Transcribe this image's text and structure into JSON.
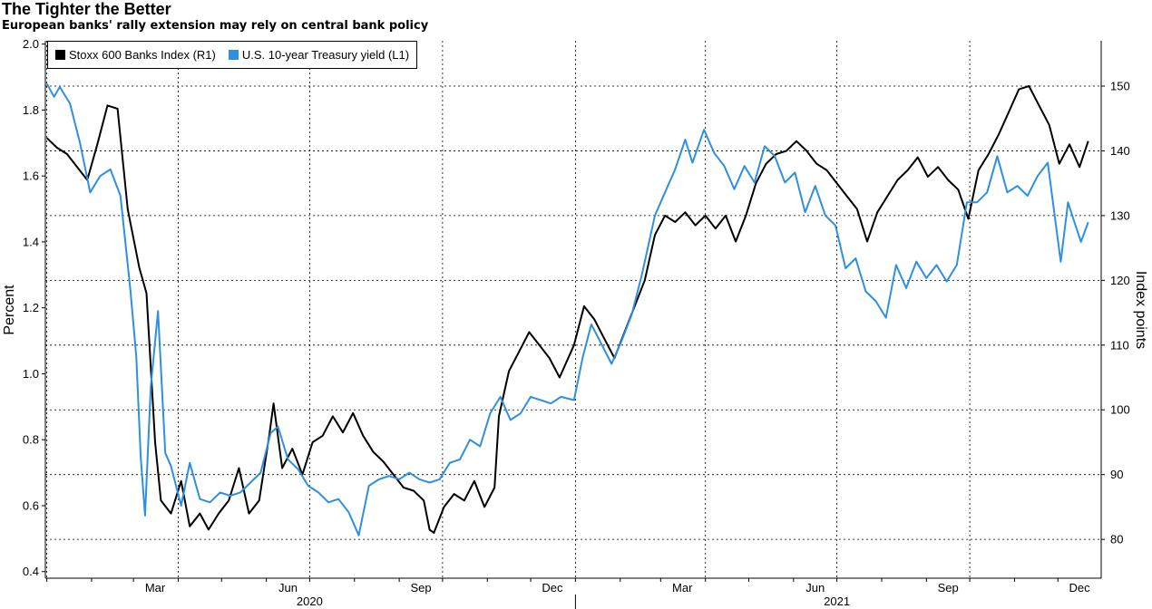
{
  "title": "The Tighter the Better",
  "subtitle": "European banks' rally extension may rely on central bank policy",
  "chart_data": {
    "type": "line",
    "left_axis": {
      "label": "Percent",
      "range": [
        0.38,
        2.01
      ],
      "ticks": [
        "0.4",
        "0.6",
        "0.8",
        "1.0",
        "1.2",
        "1.4",
        "1.6",
        "1.8",
        "2.0"
      ]
    },
    "right_axis": {
      "label": "Index points",
      "range": [
        74,
        157
      ],
      "ticks": [
        "80",
        "90",
        "100",
        "110",
        "120",
        "130",
        "140",
        "150"
      ]
    },
    "x_axis": {
      "months": [
        "Mar",
        "Jun",
        "Sep",
        "Dec",
        "Mar",
        "Jun",
        "Sep",
        "Dec"
      ],
      "years": [
        "2020",
        "2021"
      ]
    },
    "grid": true,
    "legend_position": "top-left",
    "series": [
      {
        "name": "Stoxx 600 Banks Index (R1)",
        "axis": "right",
        "color": "#000000",
        "points": [
          [
            "2020-01-01",
            142
          ],
          [
            "2020-01-08",
            140.5
          ],
          [
            "2020-01-15",
            139.5
          ],
          [
            "2020-01-22",
            137.5
          ],
          [
            "2020-01-29",
            135.5
          ],
          [
            "2020-02-05",
            141
          ],
          [
            "2020-02-12",
            147
          ],
          [
            "2020-02-19",
            146.5
          ],
          [
            "2020-02-26",
            131
          ],
          [
            "2020-03-05",
            122
          ],
          [
            "2020-03-10",
            118
          ],
          [
            "2020-03-16",
            95
          ],
          [
            "2020-03-20",
            86
          ],
          [
            "2020-03-27",
            84
          ],
          [
            "2020-04-03",
            89
          ],
          [
            "2020-04-09",
            82
          ],
          [
            "2020-04-16",
            84
          ],
          [
            "2020-04-22",
            81.5
          ],
          [
            "2020-04-29",
            84
          ],
          [
            "2020-05-06",
            86
          ],
          [
            "2020-05-13",
            91
          ],
          [
            "2020-05-20",
            84
          ],
          [
            "2020-05-27",
            86
          ],
          [
            "2020-06-03",
            96
          ],
          [
            "2020-06-06",
            101
          ],
          [
            "2020-06-12",
            91
          ],
          [
            "2020-06-19",
            94
          ],
          [
            "2020-06-26",
            90
          ],
          [
            "2020-07-03",
            95
          ],
          [
            "2020-07-10",
            96
          ],
          [
            "2020-07-17",
            99
          ],
          [
            "2020-07-24",
            96.5
          ],
          [
            "2020-07-31",
            99.5
          ],
          [
            "2020-08-07",
            96
          ],
          [
            "2020-08-14",
            93.5
          ],
          [
            "2020-08-21",
            92
          ],
          [
            "2020-08-28",
            90
          ],
          [
            "2020-09-04",
            88
          ],
          [
            "2020-09-11",
            87.5
          ],
          [
            "2020-09-18",
            86
          ],
          [
            "2020-09-22",
            81.5
          ],
          [
            "2020-09-25",
            81
          ],
          [
            "2020-10-02",
            85
          ],
          [
            "2020-10-09",
            87
          ],
          [
            "2020-10-16",
            86
          ],
          [
            "2020-10-23",
            89
          ],
          [
            "2020-10-30",
            85
          ],
          [
            "2020-11-06",
            88
          ],
          [
            "2020-11-09",
            99
          ],
          [
            "2020-11-16",
            106
          ],
          [
            "2020-11-23",
            109
          ],
          [
            "2020-11-30",
            112
          ],
          [
            "2020-12-07",
            110
          ],
          [
            "2020-12-14",
            108
          ],
          [
            "2020-12-21",
            105
          ],
          [
            "2020-12-31",
            110
          ],
          [
            "2021-01-07",
            116
          ],
          [
            "2021-01-14",
            114
          ],
          [
            "2021-01-21",
            111
          ],
          [
            "2021-01-28",
            108
          ],
          [
            "2021-02-04",
            112
          ],
          [
            "2021-02-11",
            116
          ],
          [
            "2021-02-18",
            120
          ],
          [
            "2021-02-25",
            127
          ],
          [
            "2021-03-04",
            130
          ],
          [
            "2021-03-11",
            129
          ],
          [
            "2021-03-18",
            130.5
          ],
          [
            "2021-03-25",
            128.5
          ],
          [
            "2021-04-01",
            130
          ],
          [
            "2021-04-08",
            128
          ],
          [
            "2021-04-15",
            130
          ],
          [
            "2021-04-22",
            126
          ],
          [
            "2021-04-29",
            130
          ],
          [
            "2021-05-06",
            135
          ],
          [
            "2021-05-13",
            138
          ],
          [
            "2021-05-20",
            139.5
          ],
          [
            "2021-05-27",
            140
          ],
          [
            "2021-06-03",
            141.5
          ],
          [
            "2021-06-10",
            140
          ],
          [
            "2021-06-17",
            138
          ],
          [
            "2021-06-24",
            137
          ],
          [
            "2021-07-01",
            135
          ],
          [
            "2021-07-08",
            133
          ],
          [
            "2021-07-15",
            131
          ],
          [
            "2021-07-22",
            126
          ],
          [
            "2021-07-29",
            130.5
          ],
          [
            "2021-08-05",
            133
          ],
          [
            "2021-08-12",
            135.5
          ],
          [
            "2021-08-19",
            137
          ],
          [
            "2021-08-26",
            139
          ],
          [
            "2021-09-02",
            136
          ],
          [
            "2021-09-09",
            137.5
          ],
          [
            "2021-09-16",
            135.5
          ],
          [
            "2021-09-23",
            134
          ],
          [
            "2021-09-30",
            129.5
          ],
          [
            "2021-10-07",
            137
          ],
          [
            "2021-10-14",
            139.5
          ],
          [
            "2021-10-21",
            142.5
          ],
          [
            "2021-10-28",
            146
          ],
          [
            "2021-11-04",
            149.5
          ],
          [
            "2021-11-11",
            150
          ],
          [
            "2021-11-18",
            147
          ],
          [
            "2021-11-25",
            144
          ],
          [
            "2021-12-02",
            138
          ],
          [
            "2021-12-09",
            141
          ],
          [
            "2021-12-16",
            137.5
          ],
          [
            "2021-12-22",
            141.5
          ]
        ]
      },
      {
        "name": "U.S. 10-year Treasury yield (L1)",
        "axis": "left",
        "color": "#2f8fe0",
        "points": [
          [
            "2020-01-01",
            1.88
          ],
          [
            "2020-01-06",
            1.84
          ],
          [
            "2020-01-10",
            1.87
          ],
          [
            "2020-01-17",
            1.82
          ],
          [
            "2020-01-24",
            1.7
          ],
          [
            "2020-01-31",
            1.55
          ],
          [
            "2020-02-07",
            1.6
          ],
          [
            "2020-02-14",
            1.62
          ],
          [
            "2020-02-21",
            1.54
          ],
          [
            "2020-02-28",
            1.25
          ],
          [
            "2020-03-03",
            1.05
          ],
          [
            "2020-03-06",
            0.75
          ],
          [
            "2020-03-09",
            0.57
          ],
          [
            "2020-03-13",
            0.96
          ],
          [
            "2020-03-18",
            1.19
          ],
          [
            "2020-03-23",
            0.76
          ],
          [
            "2020-03-27",
            0.72
          ],
          [
            "2020-04-03",
            0.6
          ],
          [
            "2020-04-09",
            0.73
          ],
          [
            "2020-04-16",
            0.62
          ],
          [
            "2020-04-23",
            0.61
          ],
          [
            "2020-04-30",
            0.64
          ],
          [
            "2020-05-07",
            0.63
          ],
          [
            "2020-05-14",
            0.64
          ],
          [
            "2020-05-21",
            0.67
          ],
          [
            "2020-05-28",
            0.7
          ],
          [
            "2020-06-04",
            0.82
          ],
          [
            "2020-06-09",
            0.84
          ],
          [
            "2020-06-16",
            0.74
          ],
          [
            "2020-06-23",
            0.71
          ],
          [
            "2020-06-30",
            0.66
          ],
          [
            "2020-07-07",
            0.64
          ],
          [
            "2020-07-14",
            0.61
          ],
          [
            "2020-07-21",
            0.62
          ],
          [
            "2020-07-28",
            0.58
          ],
          [
            "2020-08-04",
            0.51
          ],
          [
            "2020-08-11",
            0.66
          ],
          [
            "2020-08-18",
            0.68
          ],
          [
            "2020-08-25",
            0.69
          ],
          [
            "2020-09-01",
            0.68
          ],
          [
            "2020-09-08",
            0.7
          ],
          [
            "2020-09-15",
            0.68
          ],
          [
            "2020-09-22",
            0.67
          ],
          [
            "2020-09-29",
            0.68
          ],
          [
            "2020-10-06",
            0.73
          ],
          [
            "2020-10-13",
            0.74
          ],
          [
            "2020-10-20",
            0.8
          ],
          [
            "2020-10-27",
            0.78
          ],
          [
            "2020-11-03",
            0.88
          ],
          [
            "2020-11-10",
            0.93
          ],
          [
            "2020-11-17",
            0.86
          ],
          [
            "2020-11-24",
            0.88
          ],
          [
            "2020-12-01",
            0.93
          ],
          [
            "2020-12-08",
            0.92
          ],
          [
            "2020-12-15",
            0.91
          ],
          [
            "2020-12-22",
            0.93
          ],
          [
            "2020-12-31",
            0.92
          ],
          [
            "2021-01-06",
            1.05
          ],
          [
            "2021-01-12",
            1.15
          ],
          [
            "2021-01-19",
            1.09
          ],
          [
            "2021-01-26",
            1.03
          ],
          [
            "2021-02-02",
            1.1
          ],
          [
            "2021-02-09",
            1.18
          ],
          [
            "2021-02-16",
            1.3
          ],
          [
            "2021-02-25",
            1.48
          ],
          [
            "2021-03-04",
            1.55
          ],
          [
            "2021-03-11",
            1.62
          ],
          [
            "2021-03-18",
            1.71
          ],
          [
            "2021-03-23",
            1.64
          ],
          [
            "2021-03-31",
            1.74
          ],
          [
            "2021-04-07",
            1.67
          ],
          [
            "2021-04-14",
            1.63
          ],
          [
            "2021-04-21",
            1.56
          ],
          [
            "2021-04-28",
            1.63
          ],
          [
            "2021-05-05",
            1.58
          ],
          [
            "2021-05-12",
            1.69
          ],
          [
            "2021-05-19",
            1.66
          ],
          [
            "2021-05-26",
            1.58
          ],
          [
            "2021-06-02",
            1.61
          ],
          [
            "2021-06-09",
            1.49
          ],
          [
            "2021-06-16",
            1.57
          ],
          [
            "2021-06-23",
            1.48
          ],
          [
            "2021-06-30",
            1.45
          ],
          [
            "2021-07-07",
            1.32
          ],
          [
            "2021-07-14",
            1.35
          ],
          [
            "2021-07-21",
            1.25
          ],
          [
            "2021-07-28",
            1.22
          ],
          [
            "2021-08-04",
            1.17
          ],
          [
            "2021-08-11",
            1.33
          ],
          [
            "2021-08-18",
            1.26
          ],
          [
            "2021-08-25",
            1.34
          ],
          [
            "2021-09-01",
            1.29
          ],
          [
            "2021-09-08",
            1.33
          ],
          [
            "2021-09-15",
            1.28
          ],
          [
            "2021-09-22",
            1.33
          ],
          [
            "2021-09-29",
            1.52
          ],
          [
            "2021-10-06",
            1.52
          ],
          [
            "2021-10-13",
            1.55
          ],
          [
            "2021-10-20",
            1.66
          ],
          [
            "2021-10-27",
            1.55
          ],
          [
            "2021-11-03",
            1.57
          ],
          [
            "2021-11-10",
            1.54
          ],
          [
            "2021-11-17",
            1.6
          ],
          [
            "2021-11-24",
            1.64
          ],
          [
            "2021-11-30",
            1.44
          ],
          [
            "2021-12-03",
            1.34
          ],
          [
            "2021-12-08",
            1.52
          ],
          [
            "2021-12-14",
            1.44
          ],
          [
            "2021-12-17",
            1.4
          ],
          [
            "2021-12-22",
            1.46
          ]
        ]
      }
    ]
  }
}
